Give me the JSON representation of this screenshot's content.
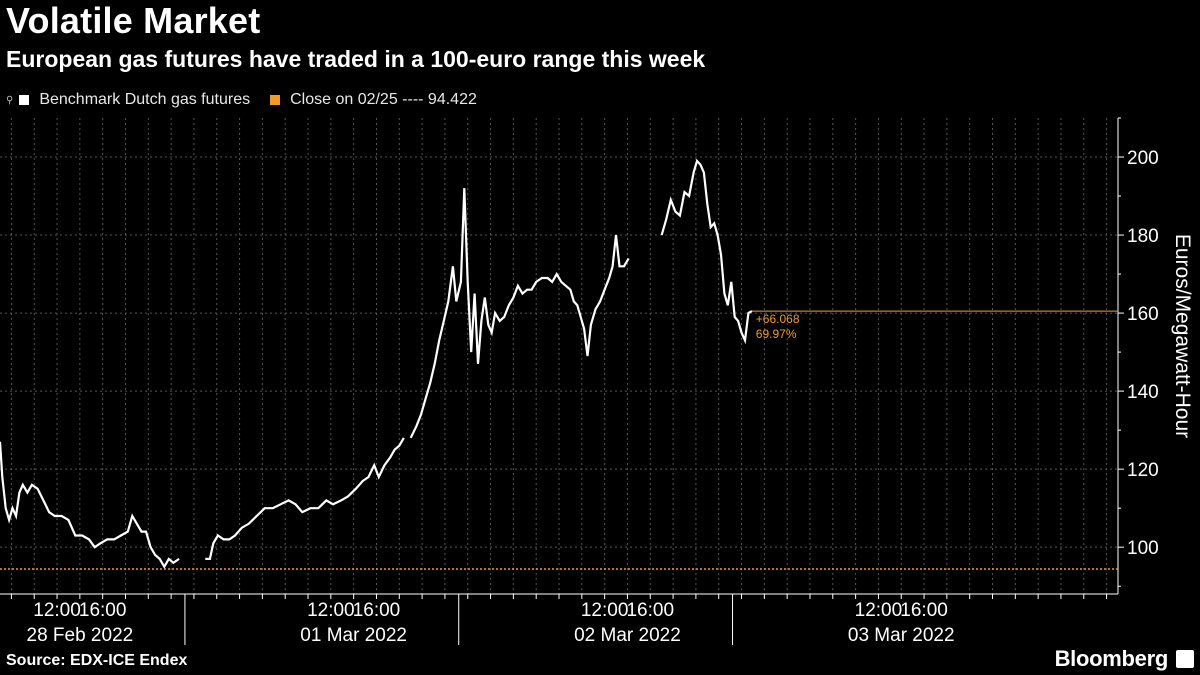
{
  "header": {
    "title": "Volatile Market",
    "subtitle": "European gas futures have traded in a 100-euro range this week"
  },
  "legend": {
    "series_label": "Benchmark Dutch gas futures",
    "close_label": "Close on 02/25 ---- 94.422"
  },
  "footer": {
    "source": "Source: EDX-ICE Endex",
    "brand": "Bloomberg"
  },
  "colors": {
    "background": "#000000",
    "series": "#ffffff",
    "reference": "#f39c1f",
    "grid": "#555555"
  },
  "chart_data": {
    "type": "line",
    "title": "Volatile Market",
    "subtitle": "European gas futures have traded in a 100-euro range this week",
    "ylabel": "Euros/Megawatt-Hour",
    "ylim": [
      88,
      210
    ],
    "y_ticks": [
      100,
      120,
      140,
      160,
      180,
      200
    ],
    "x_range_hours": [
      7,
      105
    ],
    "x_ticks": [
      {
        "hour": 12,
        "label": "12:00"
      },
      {
        "hour": 16,
        "label": "16:00"
      },
      {
        "hour": 36,
        "label": "12:00"
      },
      {
        "hour": 40,
        "label": "16:00"
      },
      {
        "hour": 60,
        "label": "12:00"
      },
      {
        "hour": 64,
        "label": "16:00"
      },
      {
        "hour": 84,
        "label": "12:00"
      },
      {
        "hour": 88,
        "label": "16:00"
      }
    ],
    "day_labels": [
      {
        "hour": 14,
        "label": "28 Feb 2022"
      },
      {
        "hour": 38,
        "label": "01 Mar 2022"
      },
      {
        "hour": 62,
        "label": "02 Mar 2022"
      },
      {
        "hour": 86,
        "label": "03 Mar 2022"
      }
    ],
    "reference_line": {
      "name": "Close on 02/25",
      "value": 94.422
    },
    "current_value": 160.49,
    "annotation": {
      "change": "+66.068",
      "percent": "69.97%"
    },
    "series": [
      {
        "name": "Benchmark Dutch gas futures",
        "segments": [
          [
            [
              7.0,
              127
            ],
            [
              7.2,
              118
            ],
            [
              7.5,
              110
            ],
            [
              7.8,
              107
            ],
            [
              8.1,
              110
            ],
            [
              8.4,
              108
            ],
            [
              8.7,
              114
            ],
            [
              9.0,
              116
            ],
            [
              9.4,
              114
            ],
            [
              9.8,
              116
            ],
            [
              10.3,
              115
            ],
            [
              10.8,
              112
            ],
            [
              11.3,
              109
            ],
            [
              11.8,
              108
            ],
            [
              12.4,
              108
            ],
            [
              13.0,
              107
            ],
            [
              13.6,
              103
            ],
            [
              14.2,
              103
            ],
            [
              14.8,
              102
            ],
            [
              15.3,
              100
            ],
            [
              15.8,
              101
            ],
            [
              16.4,
              102
            ],
            [
              17.0,
              102
            ],
            [
              17.6,
              103
            ],
            [
              18.2,
              104
            ],
            [
              18.6,
              108
            ],
            [
              19.0,
              106
            ],
            [
              19.4,
              104
            ],
            [
              19.8,
              104
            ],
            [
              20.2,
              100
            ],
            [
              20.6,
              98
            ],
            [
              21.0,
              97
            ],
            [
              21.4,
              95
            ],
            [
              21.8,
              97
            ],
            [
              22.2,
              96
            ],
            [
              22.7,
              97
            ]
          ],
          [
            [
              25.0,
              97
            ],
            [
              25.4,
              97
            ],
            [
              25.7,
              101
            ],
            [
              26.1,
              103
            ],
            [
              26.6,
              102
            ],
            [
              27.1,
              102
            ],
            [
              27.6,
              103
            ],
            [
              28.2,
              105
            ],
            [
              28.8,
              106
            ],
            [
              29.5,
              108
            ],
            [
              30.2,
              110
            ],
            [
              30.9,
              110
            ],
            [
              31.6,
              111
            ],
            [
              32.3,
              112
            ],
            [
              32.9,
              111
            ],
            [
              33.5,
              109
            ],
            [
              34.2,
              110
            ],
            [
              34.9,
              110
            ],
            [
              35.6,
              112
            ],
            [
              36.2,
              111
            ],
            [
              36.9,
              112
            ],
            [
              37.5,
              113
            ],
            [
              38.2,
              115
            ],
            [
              38.8,
              117
            ],
            [
              39.3,
              118
            ],
            [
              39.8,
              121
            ],
            [
              40.2,
              118
            ],
            [
              40.7,
              121
            ],
            [
              41.2,
              123
            ],
            [
              41.6,
              125
            ],
            [
              42.0,
              126
            ],
            [
              42.4,
              128
            ]
          ],
          [
            [
              43.0,
              128
            ],
            [
              43.5,
              131
            ],
            [
              43.9,
              134
            ],
            [
              44.3,
              138
            ],
            [
              44.7,
              142
            ],
            [
              45.1,
              147
            ],
            [
              45.5,
              153
            ],
            [
              45.9,
              158
            ],
            [
              46.3,
              163
            ],
            [
              46.7,
              172
            ],
            [
              47.0,
              163
            ],
            [
              47.4,
              168
            ],
            [
              47.7,
              192
            ],
            [
              48.0,
              168
            ],
            [
              48.3,
              150
            ],
            [
              48.6,
              165
            ],
            [
              48.9,
              147
            ],
            [
              49.2,
              158
            ],
            [
              49.5,
              164
            ],
            [
              49.8,
              157
            ],
            [
              50.1,
              155
            ],
            [
              50.4,
              160
            ],
            [
              50.8,
              158
            ],
            [
              51.2,
              159
            ],
            [
              51.6,
              162
            ],
            [
              52.0,
              164
            ],
            [
              52.4,
              167
            ],
            [
              52.8,
              165
            ],
            [
              53.2,
              166
            ],
            [
              53.6,
              166
            ],
            [
              54.0,
              168
            ],
            [
              54.5,
              169
            ],
            [
              55.0,
              169
            ],
            [
              55.4,
              168
            ],
            [
              55.8,
              170
            ],
            [
              56.2,
              168
            ],
            [
              56.6,
              167
            ],
            [
              57.0,
              166
            ],
            [
              57.3,
              163
            ],
            [
              57.6,
              162
            ],
            [
              57.9,
              159
            ],
            [
              58.2,
              156
            ],
            [
              58.5,
              149
            ],
            [
              58.8,
              157
            ],
            [
              59.2,
              161
            ],
            [
              59.6,
              163
            ],
            [
              60.0,
              166
            ],
            [
              60.4,
              169
            ],
            [
              60.7,
              172
            ],
            [
              61.0,
              180
            ],
            [
              61.3,
              172
            ],
            [
              61.7,
              172
            ],
            [
              62.1,
              174
            ]
          ],
          [
            [
              65.0,
              180
            ],
            [
              65.4,
              184
            ],
            [
              65.8,
              189
            ],
            [
              66.2,
              186
            ],
            [
              66.6,
              185
            ],
            [
              67.0,
              191
            ],
            [
              67.4,
              190
            ],
            [
              67.8,
              196
            ],
            [
              68.1,
              199
            ],
            [
              68.4,
              198
            ],
            [
              68.7,
              196
            ],
            [
              69.0,
              188
            ],
            [
              69.3,
              182
            ],
            [
              69.6,
              183
            ],
            [
              69.9,
              180
            ],
            [
              70.2,
              175
            ],
            [
              70.5,
              165
            ],
            [
              70.8,
              162
            ],
            [
              71.1,
              168
            ],
            [
              71.4,
              159
            ],
            [
              71.7,
              158
            ],
            [
              72.0,
              155
            ],
            [
              72.3,
              153
            ],
            [
              72.6,
              160
            ],
            [
              72.9,
              160.5
            ]
          ]
        ]
      }
    ]
  }
}
